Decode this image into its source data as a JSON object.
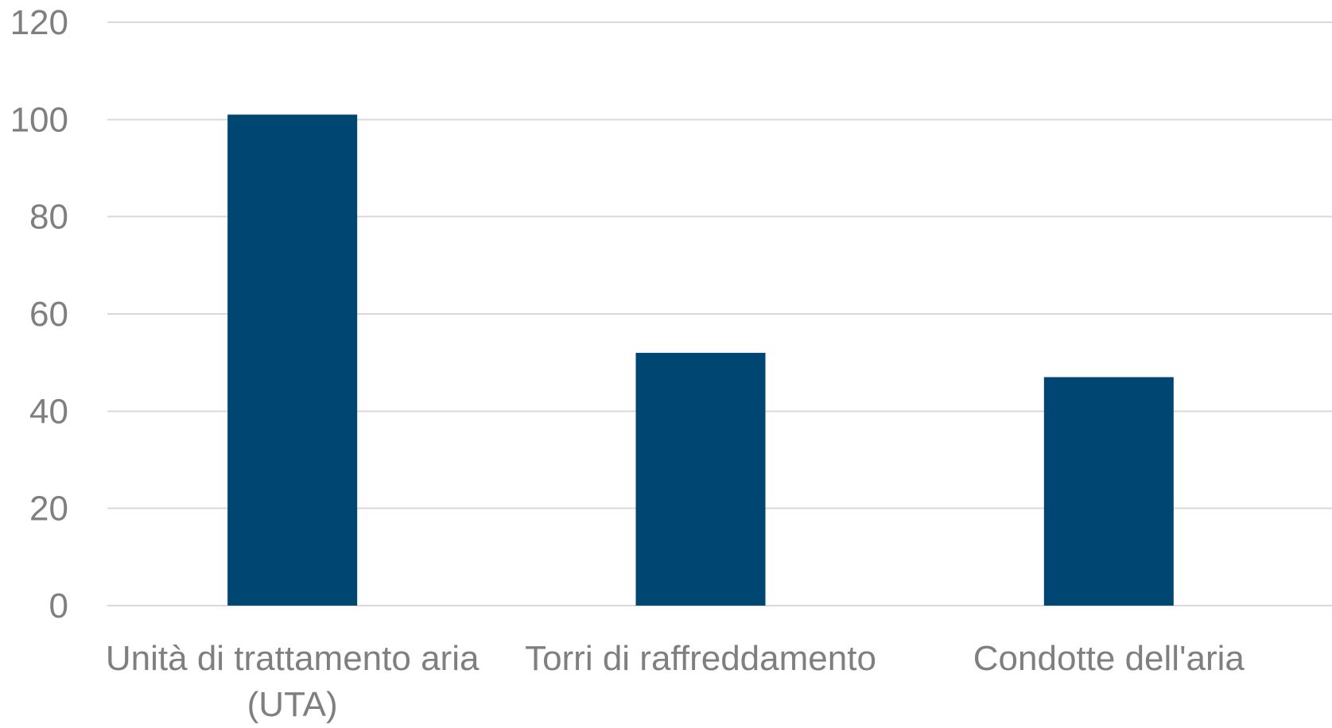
{
  "chart_data": {
    "type": "bar",
    "title": "",
    "xlabel": "",
    "ylabel": "",
    "categories": [
      "Unità di trattamento aria (UTA)",
      "Torri di raffreddamento",
      "Condotte dell'aria"
    ],
    "category_lines": [
      [
        "Unità di trattamento aria",
        "(UTA)"
      ],
      [
        "Torri di raffreddamento"
      ],
      [
        "Condotte dell'aria"
      ]
    ],
    "values": [
      101,
      52,
      47
    ],
    "ylim": [
      0,
      120
    ],
    "yticks": [
      0,
      20,
      40,
      60,
      80,
      100,
      120
    ],
    "grid": true,
    "legend": "none",
    "colors": {
      "bar": "#004673",
      "grid": "#d9d9d9",
      "text": "#7f7f7f"
    }
  }
}
